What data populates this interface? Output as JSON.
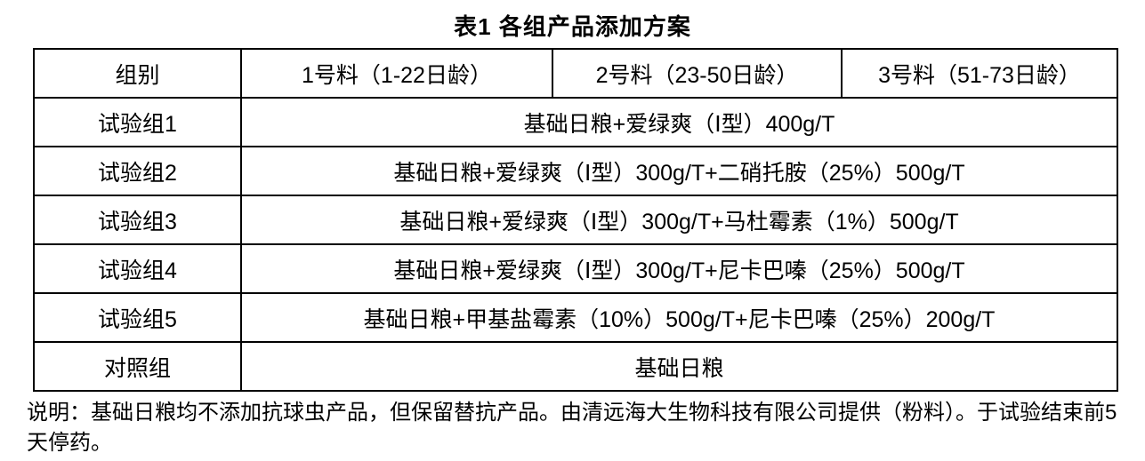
{
  "doc": {
    "title": "表1 各组产品添加方案",
    "note": "说明：基础日粮均不添加抗球虫产品，但保留替抗产品。由清远海大生物科技有限公司提供（粉料）。于试验结束前5天停药。"
  },
  "table": {
    "headers": [
      "组别",
      "1号料（1-22日龄）",
      "2号料（23-50日龄）",
      "3号料（51-73日龄）"
    ],
    "rows": [
      {
        "group": "试验组1",
        "treatment": "基础日粮+爱绿爽（Ⅰ型）400g/T"
      },
      {
        "group": "试验组2",
        "treatment": "基础日粮+爱绿爽（Ⅰ型）300g/T+二硝托胺（25%）500g/T"
      },
      {
        "group": "试验组3",
        "treatment": "基础日粮+爱绿爽（Ⅰ型）300g/T+马杜霉素（1%）500g/T"
      },
      {
        "group": "试验组4",
        "treatment": "基础日粮+爱绿爽（Ⅰ型）300g/T+尼卡巴嗪（25%）500g/T"
      },
      {
        "group": "试验组5",
        "treatment": "基础日粮+甲基盐霉素（10%）500g/T+尼卡巴嗪（25%）200g/T"
      },
      {
        "group": "对照组",
        "treatment": "基础日粮"
      }
    ]
  },
  "colors": {
    "text": "#000000",
    "border": "#000000",
    "background": "#ffffff"
  }
}
